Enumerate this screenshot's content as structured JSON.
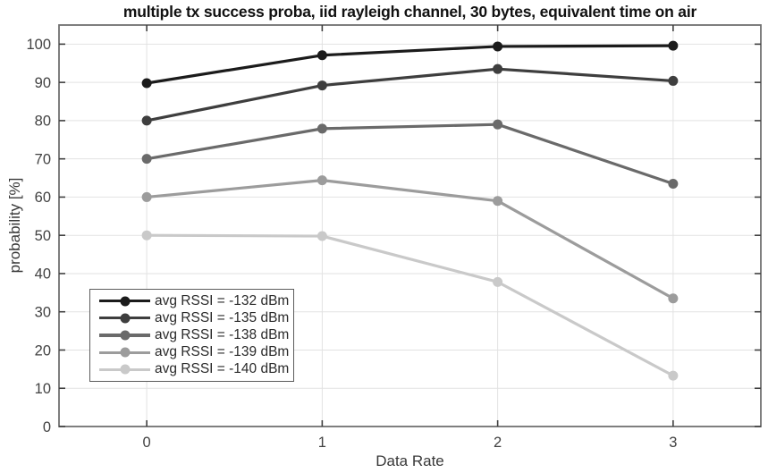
{
  "chart_data": {
    "type": "line",
    "title": "multiple tx success proba, iid rayleigh channel, 30 bytes, equivalent time on air",
    "xlabel": "Data Rate",
    "ylabel": "probability [%]",
    "x": [
      0,
      1,
      2,
      3
    ],
    "xlim": [
      -0.5,
      3.5
    ],
    "ylim": [
      0,
      105
    ],
    "xticks": [
      0,
      1,
      2,
      3
    ],
    "yticks": [
      0,
      10,
      20,
      30,
      40,
      50,
      60,
      70,
      80,
      90,
      100
    ],
    "grid": true,
    "legend_position": "lower-left",
    "marker": "circle",
    "series": [
      {
        "name": "avg RSSI = -132 dBm",
        "color": "#1b1b1b",
        "values": [
          89.8,
          97.1,
          99.4,
          99.6
        ]
      },
      {
        "name": "avg RSSI = -135 dBm",
        "color": "#3e3e3e",
        "values": [
          80.0,
          89.2,
          93.5,
          90.4
        ]
      },
      {
        "name": "avg RSSI = -138 dBm",
        "color": "#6a6a6a",
        "values": [
          70.0,
          77.9,
          79.0,
          63.5
        ]
      },
      {
        "name": "avg RSSI = -139 dBm",
        "color": "#9c9c9c",
        "values": [
          60.0,
          64.4,
          59.0,
          33.5
        ]
      },
      {
        "name": "avg RSSI = -140 dBm",
        "color": "#c9c9c9",
        "values": [
          50.0,
          49.8,
          37.8,
          13.3
        ]
      }
    ],
    "palette": {
      "grid": "#e2e2e2",
      "box_border": "#717171",
      "tick_mark": "#404040",
      "tick_label": "#424242",
      "axis_label": "#383838",
      "title": "#111111",
      "background": "#ffffff",
      "legend_border": "#5c5c5c"
    }
  }
}
